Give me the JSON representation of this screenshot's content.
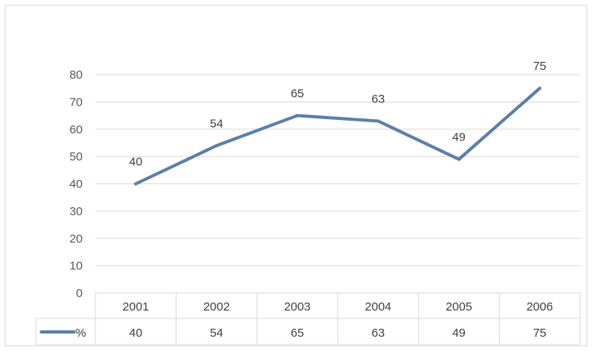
{
  "chart_data": {
    "type": "line",
    "categories": [
      "2001",
      "2002",
      "2003",
      "2004",
      "2005",
      "2006"
    ],
    "series": [
      {
        "name": "%",
        "values": [
          40,
          54,
          65,
          63,
          49,
          75
        ],
        "color": "#5b7fa8"
      }
    ],
    "ylim": [
      0,
      80
    ],
    "yticks": [
      "0",
      "10",
      "20",
      "30",
      "40",
      "50",
      "60",
      "70",
      "80"
    ],
    "data_labels": [
      "40",
      "54",
      "65",
      "63",
      "49",
      "75"
    ],
    "grid": true,
    "data_table": true,
    "legend": "data-table-left",
    "title": "",
    "xlabel": "",
    "ylabel": ""
  }
}
